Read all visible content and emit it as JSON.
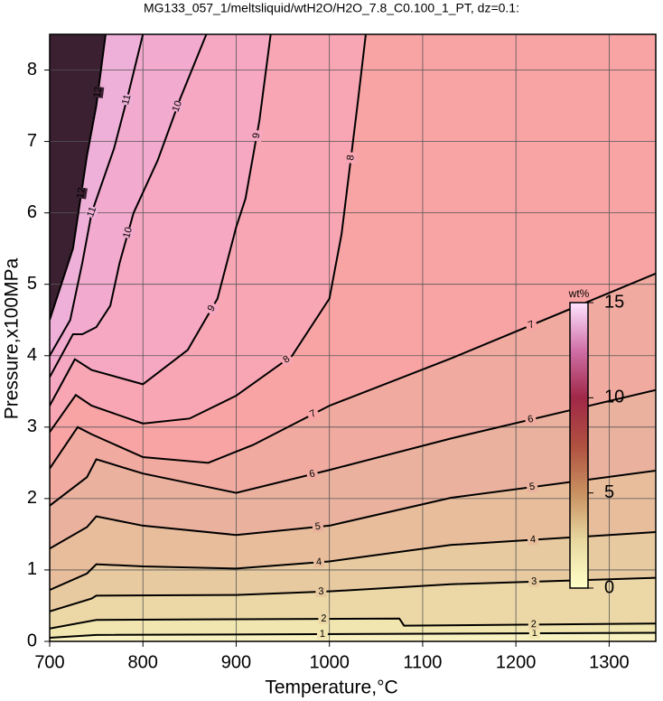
{
  "chart_data": {
    "type": "contour",
    "title": "MG133_057_1/meltsliquid/wtH2O/H2O_7.8_C0.100_1_PT, dz=0.1:",
    "x_label": "Temperature,°C",
    "y_label": "Pressure,x100MPa",
    "xlim": [
      700,
      1350
    ],
    "ylim": [
      0,
      8.5
    ],
    "xticks": [
      700,
      800,
      900,
      1000,
      1100,
      1200,
      1300
    ],
    "yticks": [
      0,
      1,
      2,
      3,
      4,
      5,
      6,
      7,
      8
    ],
    "grid": true,
    "base_color": "#f8f2c0",
    "line_color": "#000000",
    "contours": [
      {
        "level": 1,
        "color": "#f2e6b0",
        "x": [
          700,
          750,
          1350
        ],
        "y": [
          0.05,
          0.09,
          0.12
        ]
      },
      {
        "level": 2,
        "color": "#ecd8a6",
        "x": [
          700,
          750,
          900,
          1075,
          1080,
          1350
        ],
        "y": [
          0.18,
          0.3,
          0.31,
          0.32,
          0.22,
          0.25
        ]
      },
      {
        "level": 3,
        "color": "#e8caa0",
        "x": [
          700,
          745,
          750,
          900,
          1000,
          1130,
          1350
        ],
        "y": [
          0.42,
          0.6,
          0.64,
          0.65,
          0.7,
          0.8,
          0.89
        ]
      },
      {
        "level": 4,
        "color": "#e8bd9c",
        "x": [
          700,
          740,
          750,
          800,
          900,
          1000,
          1130,
          1350
        ],
        "y": [
          0.72,
          0.95,
          1.08,
          1.05,
          1.02,
          1.12,
          1.35,
          1.53
        ]
      },
      {
        "level": 5,
        "color": "#eab29e",
        "x": [
          700,
          740,
          750,
          800,
          900,
          1000,
          1130,
          1350
        ],
        "y": [
          1.3,
          1.6,
          1.75,
          1.62,
          1.49,
          1.62,
          2.01,
          2.39
        ]
      },
      {
        "level": 6,
        "color": "#f0aaa0",
        "x": [
          700,
          740,
          750,
          800,
          900,
          1000,
          1130,
          1350
        ],
        "y": [
          1.9,
          2.3,
          2.55,
          2.35,
          2.08,
          2.4,
          2.84,
          3.52
        ]
      },
      {
        "level": 7,
        "color": "#f8a4a4",
        "x": [
          700,
          730,
          745,
          800,
          870,
          918,
          1000,
          1130,
          1350
        ],
        "y": [
          2.42,
          3.0,
          2.9,
          2.58,
          2.5,
          2.75,
          3.3,
          3.96,
          5.15
        ]
      },
      {
        "level": 8,
        "color": "#f8a6b4",
        "x": [
          700,
          728,
          745,
          800,
          850,
          900,
          960,
          1000,
          1013,
          1030,
          1039
        ],
        "y": [
          2.93,
          3.45,
          3.3,
          3.05,
          3.12,
          3.44,
          4.0,
          4.8,
          5.7,
          7.5,
          8.5
        ]
      },
      {
        "level": 9,
        "color": "#f6a8c2",
        "x": [
          700,
          727,
          745,
          800,
          848,
          880,
          900,
          910,
          925,
          937
        ],
        "y": [
          3.3,
          3.95,
          3.8,
          3.6,
          4.08,
          4.8,
          5.8,
          6.2,
          7.3,
          8.5
        ]
      },
      {
        "level": 10,
        "color": "#f2aace",
        "x": [
          700,
          725,
          735,
          750,
          765,
          775,
          790,
          816,
          840,
          868
        ],
        "y": [
          3.7,
          4.3,
          4.3,
          4.4,
          4.7,
          5.3,
          6.0,
          6.74,
          7.6,
          8.5
        ]
      },
      {
        "level": 11,
        "color": "#eeb0d8",
        "x": [
          700,
          722,
          735,
          745,
          769,
          785,
          800
        ],
        "y": [
          4.0,
          4.5,
          5.3,
          6.0,
          6.9,
          7.7,
          8.5
        ]
      },
      {
        "level": 12,
        "color": "#3a2030",
        "x": [
          700,
          725,
          740,
          750,
          760
        ],
        "y": [
          4.5,
          5.5,
          6.8,
          7.5,
          8.5
        ]
      }
    ],
    "colorbar": {
      "label": "wt%",
      "lim": [
        0,
        15
      ],
      "ticks": [
        0,
        5,
        10,
        15
      ],
      "colors": [
        "#ffffc8",
        "#e8d8a0",
        "#c89060",
        "#b05040",
        "#a02848",
        "#d070a8",
        "#ffe4ff"
      ]
    }
  }
}
